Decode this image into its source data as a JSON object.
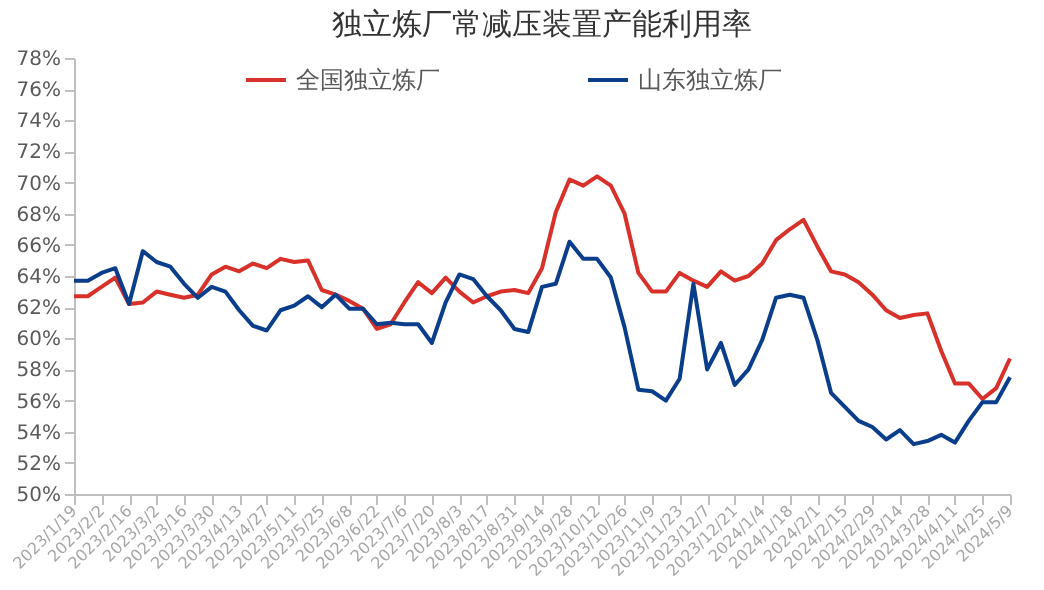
{
  "chart_data": {
    "type": "line",
    "title": "独立炼厂常减压装置产能利用率",
    "categories": [
      "2023/1/19",
      null,
      "2023/2/2",
      null,
      "2023/2/16",
      null,
      "2023/3/2",
      null,
      "2023/3/16",
      null,
      "2023/3/30",
      null,
      "2023/4/13",
      null,
      "2023/4/27",
      null,
      "2023/5/11",
      null,
      "2023/5/25",
      null,
      "2023/6/8",
      null,
      "2023/6/22",
      null,
      "2023/7/6",
      null,
      "2023/7/20",
      null,
      "2023/8/3",
      null,
      "2023/8/17",
      null,
      "2023/8/31",
      null,
      "2023/9/14",
      null,
      "2023/9/28",
      null,
      "2023/10/12",
      null,
      "2023/10/26",
      null,
      "2023/11/9",
      null,
      "2023/11/23",
      null,
      "2023/12/7",
      null,
      "2023/12/21",
      null,
      "2024/1/4",
      null,
      "2024/1/18",
      null,
      "2024/2/1",
      null,
      "2024/2/15",
      null,
      "2024/2/29",
      null,
      "2024/3/14",
      null,
      "2024/3/28",
      null,
      "2024/4/11",
      null,
      "2024/4/25",
      null,
      "2024/5/9"
    ],
    "series": [
      {
        "name": "全国独立炼厂",
        "color": "#d7312a",
        "values": [
          62.7,
          62.7,
          63.3,
          63.9,
          62.2,
          62.3,
          63.0,
          62.8,
          62.6,
          62.8,
          64.1,
          64.6,
          64.3,
          64.8,
          64.5,
          65.1,
          64.9,
          65.0,
          63.1,
          62.8,
          62.4,
          61.9,
          60.6,
          60.9,
          62.3,
          63.6,
          62.9,
          63.9,
          63.0,
          62.3,
          62.7,
          63.0,
          63.1,
          62.9,
          64.5,
          68.1,
          70.2,
          69.8,
          70.4,
          69.8,
          68.0,
          64.2,
          63.0,
          63.0,
          64.2,
          63.7,
          63.3,
          64.3,
          63.7,
          64.0,
          64.8,
          66.3,
          67.0,
          67.6,
          65.9,
          64.3,
          64.1,
          63.6,
          62.8,
          61.8,
          61.3,
          61.5,
          61.6,
          59.2,
          57.1,
          57.1,
          56.1,
          56.8,
          58.7
        ]
      },
      {
        "name": "山东独立炼厂",
        "color": "#0a3d8a",
        "values": [
          63.7,
          63.7,
          64.2,
          64.5,
          62.2,
          65.6,
          64.9,
          64.6,
          63.5,
          62.6,
          63.3,
          63.0,
          61.8,
          60.8,
          60.5,
          61.8,
          62.1,
          62.7,
          62.0,
          62.8,
          61.9,
          61.9,
          60.9,
          61.0,
          60.9,
          60.9,
          59.7,
          62.3,
          64.1,
          63.8,
          62.7,
          61.8,
          60.6,
          60.4,
          63.3,
          63.5,
          66.2,
          65.1,
          65.1,
          63.9,
          60.7,
          56.7,
          56.6,
          56.0,
          57.4,
          63.5,
          58.0,
          59.7,
          57.0,
          58.0,
          59.9,
          62.6,
          62.8,
          62.6,
          59.9,
          56.5,
          55.6,
          54.7,
          54.3,
          53.5,
          54.1,
          53.2,
          53.4,
          53.8,
          53.3,
          54.7,
          55.9,
          55.9,
          57.5
        ]
      }
    ],
    "ylim": [
      50,
      78
    ],
    "yticks": [
      {
        "value": 50,
        "label": "50%"
      },
      {
        "value": 52,
        "label": "52%"
      },
      {
        "value": 54,
        "label": "54%"
      },
      {
        "value": 56,
        "label": "56%"
      },
      {
        "value": 58,
        "label": "58%"
      },
      {
        "value": 60,
        "label": "60%"
      },
      {
        "value": 62,
        "label": "62%"
      },
      {
        "value": 64,
        "label": "64%"
      },
      {
        "value": 66,
        "label": "66%"
      },
      {
        "value": 68,
        "label": "68%"
      },
      {
        "value": 70,
        "label": "70%"
      },
      {
        "value": 72,
        "label": "72%"
      },
      {
        "value": 74,
        "label": "74%"
      },
      {
        "value": 76,
        "label": "76%"
      },
      {
        "value": 78,
        "label": "78%"
      }
    ],
    "grid": false,
    "legend": "top",
    "marker": "none",
    "line_style": "solid"
  }
}
